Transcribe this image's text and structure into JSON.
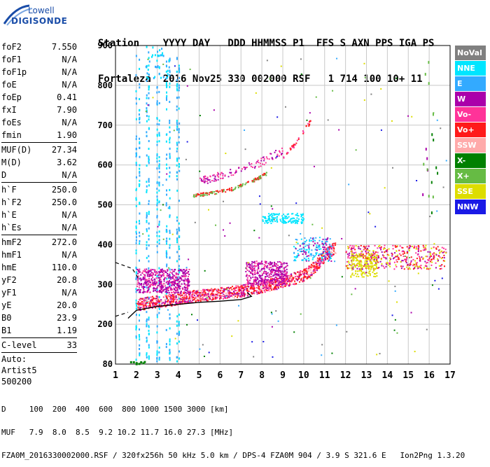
{
  "logo": {
    "line1": "Lowell",
    "line2": "DIGISONDE"
  },
  "header": {
    "row1": "Station    YYYY DAY   DDD HHMMSS P1  FFS S AXN PPS IGA PS",
    "row2": "Fortaleza  2016 Nov25 330 002000 RSF   1 714 100 10+ 11"
  },
  "params_groups": [
    [
      {
        "label": "foF2",
        "value": "7.550"
      },
      {
        "label": "foF1",
        "value": "N/A"
      },
      {
        "label": "foF1p",
        "value": "N/A"
      },
      {
        "label": "foE",
        "value": "N/A"
      },
      {
        "label": "foEp",
        "value": "0.41"
      },
      {
        "label": "fxI",
        "value": "7.90"
      },
      {
        "label": "foEs",
        "value": "N/A"
      },
      {
        "label": "fmin",
        "value": "1.90"
      }
    ],
    [
      {
        "label": "MUF(D)",
        "value": "27.34"
      },
      {
        "label": "M(D)",
        "value": "3.62"
      },
      {
        "label": "D",
        "value": "N/A"
      }
    ],
    [
      {
        "label": "h`F",
        "value": "250.0"
      },
      {
        "label": "h`F2",
        "value": "250.0"
      },
      {
        "label": "h`E",
        "value": "N/A"
      },
      {
        "label": "h`Es",
        "value": "N/A"
      }
    ],
    [
      {
        "label": "hmF2",
        "value": "272.0"
      },
      {
        "label": "hmF1",
        "value": "N/A"
      },
      {
        "label": "hmE",
        "value": "110.0"
      },
      {
        "label": "yF2",
        "value": "20.8"
      },
      {
        "label": "yF1",
        "value": "N/A"
      },
      {
        "label": "yE",
        "value": "20.0"
      },
      {
        "label": "B0",
        "value": "23.9"
      },
      {
        "label": "B1",
        "value": "1.19"
      }
    ],
    [
      {
        "label": "C-level",
        "value": "33"
      }
    ]
  ],
  "auto": [
    "Auto:",
    "Artist5",
    "500200"
  ],
  "legend": [
    {
      "label": "NoVal",
      "color": "#808080"
    },
    {
      "label": "NNE",
      "color": "#00e5ff"
    },
    {
      "label": "E",
      "color": "#33aaff"
    },
    {
      "label": "W",
      "color": "#aa00aa"
    },
    {
      "label": "Vo-",
      "color": "#ff3399"
    },
    {
      "label": "Vo+",
      "color": "#ff1a1a"
    },
    {
      "label": "SSW",
      "color": "#ffaaaa"
    },
    {
      "label": "X-",
      "color": "#008000"
    },
    {
      "label": "X+",
      "color": "#66bb44"
    },
    {
      "label": "SSE",
      "color": "#dddd00"
    },
    {
      "label": "NNW",
      "color": "#1a1ae6"
    }
  ],
  "footer": {
    "d_row": "D     100  200  400  600  800 1000 1500 3000 [km]",
    "muf_row": "MUF   7.9  8.0  8.5  9.2 10.2 11.7 16.0 27.3 [MHz]",
    "info_row": "FZA0M_2016330002000.RSF / 320fx256h 50 kHz 5.0 km / DPS-4 FZA0M 904 / 3.9 S 321.6 E   Ion2Png 1.3.20"
  },
  "chart_data": {
    "type": "scatter",
    "x_ticks": [
      "1",
      "2",
      "3",
      "4",
      "5",
      "6",
      "7",
      "8",
      "9",
      "10",
      "11",
      "12",
      "13",
      "14",
      "15",
      "16",
      "17"
    ],
    "y_ticks": [
      "80",
      "200",
      "300",
      "400",
      "500",
      "600",
      "700",
      "800",
      "900"
    ],
    "xlim": [
      1,
      17
    ],
    "y_levels": [
      80,
      200,
      300,
      400,
      500,
      600,
      700,
      800,
      900
    ],
    "grid": true,
    "legend_position": "right",
    "trace_f2": {
      "x": [
        2.0,
        2.5,
        3.0,
        3.5,
        4.0,
        4.5,
        5.0,
        5.5,
        6.0,
        6.5,
        7.0,
        7.5,
        8.0,
        8.5,
        9.0,
        9.5,
        10.0,
        10.5,
        11.0,
        11.5
      ],
      "y": [
        250,
        255,
        258,
        262,
        265,
        270,
        273,
        276,
        279,
        282,
        285,
        290,
        296,
        302,
        308,
        316,
        325,
        345,
        375,
        395
      ]
    },
    "profile_curve": {
      "x": [
        1.6,
        2.0,
        3.0,
        4.0,
        5.0,
        6.0,
        7.0,
        7.5,
        7.3
      ],
      "y": [
        215,
        235,
        245,
        250,
        255,
        258,
        262,
        270,
        280
      ]
    },
    "profile_dash": {
      "x": [
        1.0,
        1.8,
        2.1
      ],
      "y": [
        355,
        340,
        315
      ]
    }
  }
}
